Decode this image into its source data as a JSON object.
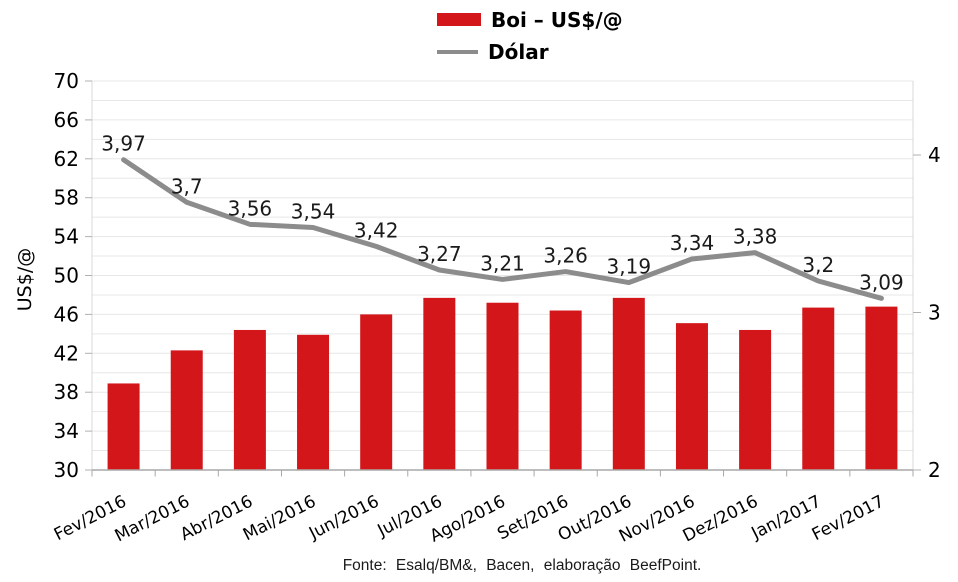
{
  "legend": {
    "items": [
      {
        "label": "Boi – US$/@",
        "marker": "bar-swatch",
        "color": "#d2161a"
      },
      {
        "label": "Dólar",
        "marker": "line-swatch",
        "color": "#8c8c8c"
      }
    ]
  },
  "footer": {
    "text": "Fonte: Esalq/BM&, Bacen, elaboração BeefPoint."
  },
  "chart_data": {
    "type": "bar",
    "title": "",
    "categories": [
      "Fev/2016",
      "Mar/2016",
      "Abr/2016",
      "Mai/2016",
      "Jun/2016",
      "Jul/2016",
      "Ago/2016",
      "Set/2016",
      "Out/2016",
      "Nov/2016",
      "Dez/2016",
      "Jan/2017",
      "Fev/2017"
    ],
    "series": [
      {
        "name": "Boi – US$/@",
        "type": "bar",
        "axis": "left",
        "color": "#d2161a",
        "values": [
          38.9,
          42.3,
          44.4,
          43.9,
          46.0,
          47.7,
          47.2,
          46.4,
          47.7,
          45.1,
          44.4,
          46.7,
          46.8
        ]
      },
      {
        "name": "Dólar",
        "type": "line",
        "axis": "right",
        "color": "#8c8c8c",
        "values": [
          3.97,
          3.7,
          3.56,
          3.54,
          3.42,
          3.27,
          3.21,
          3.26,
          3.19,
          3.34,
          3.38,
          3.2,
          3.09
        ],
        "point_labels": [
          "3,97",
          "3,7",
          "3,56",
          "3,54",
          "3,42",
          "3,27",
          "3,21",
          "3,26",
          "3,19",
          "3,34",
          "3,38",
          "3,2",
          "3,09"
        ]
      }
    ],
    "left_axis": {
      "title": "US$/@",
      "min": 30,
      "max": 70,
      "tick_step": 4,
      "grid_step": 2,
      "tick_labels": [
        "30",
        "34",
        "38",
        "42",
        "46",
        "50",
        "54",
        "58",
        "62",
        "66",
        "70"
      ]
    },
    "right_axis": {
      "min": 2,
      "max": 4.47,
      "ticks": [
        {
          "value": 2,
          "label": "2"
        },
        {
          "value": 3,
          "label": "3"
        },
        {
          "value": 4,
          "label": "4"
        }
      ]
    },
    "legend_position": "top-center",
    "grid": true,
    "source": "Fonte: Esalq/BM&, Bacen, elaboração BeefPoint."
  },
  "colors": {
    "bar": "#d2161a",
    "line": "#8c8c8c",
    "grid": "#e7e7e7",
    "axis_line": "#a8a8a8",
    "axis_side": "#d8d8d8",
    "tick": "#b0b0b0",
    "text": "#000000",
    "label_text": "#1a1a1a"
  }
}
